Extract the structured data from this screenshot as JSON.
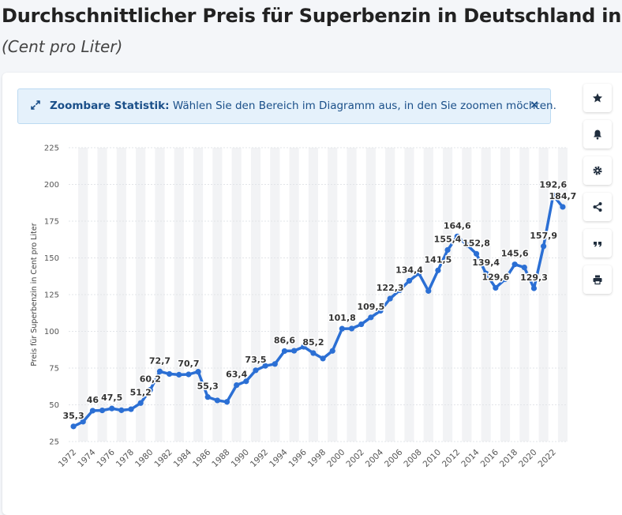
{
  "header": {
    "title": "Durchschnittlicher Preis für Superbenzin in Deutschland in d",
    "subtitle": "(Cent pro Liter)"
  },
  "zoom_banner": {
    "label": "Zoombare Statistik:",
    "text": " Wählen Sie den Bereich im Diagramm aus, in den Sie zoomen möchten.",
    "close": "×"
  },
  "toolbar": {
    "buttons": [
      {
        "name": "favorite-button",
        "icon": "star-icon"
      },
      {
        "name": "notification-button",
        "icon": "bell-icon"
      },
      {
        "name": "settings-button",
        "icon": "gear-icon"
      },
      {
        "name": "share-button",
        "icon": "share-icon"
      },
      {
        "name": "cite-button",
        "icon": "quote-icon"
      },
      {
        "name": "print-button",
        "icon": "printer-icon"
      }
    ]
  },
  "chart_data": {
    "type": "line",
    "title": "",
    "xlabel": "",
    "ylabel": "Preis für Superbenzin in Cent pro Liter",
    "ylim": [
      25,
      225
    ],
    "yticks": [
      25,
      50,
      75,
      100,
      125,
      150,
      175,
      200,
      225
    ],
    "xticks": [
      1972,
      1974,
      1976,
      1978,
      1980,
      1982,
      1984,
      1986,
      1988,
      1990,
      1992,
      1994,
      1996,
      1998,
      2000,
      2002,
      2004,
      2006,
      2008,
      2010,
      2012,
      2014,
      2016,
      2018,
      2020,
      2022
    ],
    "grid": "horizontal",
    "line_color": "#2b6fd4",
    "x": [
      1972,
      1973,
      1974,
      1975,
      1976,
      1977,
      1978,
      1979,
      1980,
      1981,
      1982,
      1983,
      1984,
      1985,
      1986,
      1987,
      1988,
      1989,
      1990,
      1991,
      1992,
      1993,
      1994,
      1995,
      1996,
      1997,
      1998,
      1999,
      2000,
      2001,
      2002,
      2003,
      2004,
      2005,
      2006,
      2007,
      2008,
      2009,
      2010,
      2011,
      2012,
      2013,
      2014,
      2015,
      2016,
      2017,
      2018,
      2019,
      2020,
      2021,
      2022,
      2023
    ],
    "values": [
      35.3,
      38.5,
      46,
      46.2,
      47.5,
      46.3,
      47,
      51.2,
      60.2,
      72.7,
      71,
      70.5,
      70.7,
      72.5,
      55.3,
      53,
      52,
      63.4,
      66,
      73.5,
      76.5,
      77.8,
      86.6,
      86.8,
      89.5,
      85.2,
      81.5,
      86.7,
      101.8,
      101.9,
      104.8,
      109.5,
      114,
      122.3,
      128,
      134.4,
      139.5,
      127.5,
      141.5,
      155.4,
      164.6,
      159,
      152.8,
      139.4,
      129.6,
      135.5,
      145.6,
      143.5,
      129.3,
      157.9,
      192.6,
      184.7
    ],
    "labels": [
      {
        "x": 1972,
        "text": "35,3"
      },
      {
        "x": 1974,
        "text": "46"
      },
      {
        "x": 1976,
        "text": "47,5"
      },
      {
        "x": 1979,
        "text": "51,2"
      },
      {
        "x": 1980,
        "text": "60,2"
      },
      {
        "x": 1981,
        "text": "72,7"
      },
      {
        "x": 1984,
        "text": "70,7"
      },
      {
        "x": 1986,
        "text": "55,3"
      },
      {
        "x": 1989,
        "text": "63,4"
      },
      {
        "x": 1991,
        "text": "73,5"
      },
      {
        "x": 1994,
        "text": "86,6"
      },
      {
        "x": 1997,
        "text": "85,2"
      },
      {
        "x": 2000,
        "text": "101,8"
      },
      {
        "x": 2003,
        "text": "109,5"
      },
      {
        "x": 2005,
        "text": "122,3"
      },
      {
        "x": 2007,
        "text": "134,4"
      },
      {
        "x": 2010,
        "text": "141,5"
      },
      {
        "x": 2011,
        "text": "155,4"
      },
      {
        "x": 2012,
        "text": "164,6"
      },
      {
        "x": 2014,
        "text": "152,8"
      },
      {
        "x": 2015,
        "text": "139,4"
      },
      {
        "x": 2016,
        "text": "129,6"
      },
      {
        "x": 2018,
        "text": "145,6"
      },
      {
        "x": 2020,
        "text": "129,3"
      },
      {
        "x": 2021,
        "text": "157,9"
      },
      {
        "x": 2022,
        "text": "192,6"
      },
      {
        "x": 2023,
        "text": "184,7"
      }
    ]
  }
}
